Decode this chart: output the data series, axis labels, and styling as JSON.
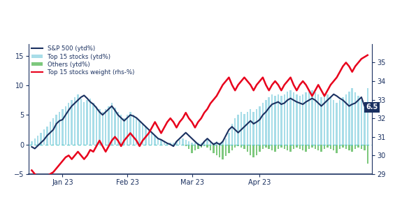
{
  "sp500_color": "#1a3060",
  "top15_bar_color": "#a8dde8",
  "others_bar_color": "#7dc87d",
  "weight_color": "#e8001c",
  "zero_line_color": "#5bc8c8",
  "annotation_bg": "#1a3060",
  "annotation_text": "6.5",
  "ylim_left": [
    -5,
    17
  ],
  "ylim_right": [
    29,
    36
  ],
  "yticks_left": [
    -5,
    0,
    5,
    10,
    15
  ],
  "yticks_right": [
    29,
    30,
    31,
    32,
    33,
    34,
    35
  ],
  "xtick_labels": [
    "Jan 23",
    "Feb 23",
    "Mar 23",
    "Apr 23"
  ],
  "xtick_positions": [
    10,
    31,
    52,
    74
  ],
  "n_days": 110,
  "sp500": [
    -0.4,
    -0.7,
    -0.2,
    0.3,
    0.8,
    1.5,
    2.0,
    2.5,
    3.5,
    4.0,
    4.2,
    5.0,
    5.8,
    6.5,
    7.0,
    7.5,
    8.0,
    8.3,
    7.8,
    7.2,
    6.8,
    6.2,
    5.5,
    5.0,
    5.5,
    6.0,
    6.5,
    5.8,
    5.0,
    4.5,
    4.0,
    4.5,
    5.0,
    4.8,
    4.5,
    4.0,
    3.5,
    3.0,
    2.5,
    2.0,
    1.5,
    1.0,
    0.8,
    0.5,
    0.2,
    0.0,
    -0.3,
    0.5,
    1.0,
    1.5,
    2.0,
    1.5,
    1.0,
    0.5,
    0.0,
    -0.2,
    0.5,
    1.0,
    0.5,
    0.0,
    0.3,
    0.0,
    0.5,
    1.5,
    2.5,
    3.0,
    2.5,
    2.0,
    2.5,
    3.0,
    3.5,
    4.0,
    3.5,
    3.8,
    4.2,
    5.0,
    5.5,
    6.2,
    6.8,
    7.0,
    7.2,
    6.8,
    7.0,
    7.5,
    7.8,
    7.5,
    7.2,
    7.0,
    6.8,
    7.2,
    7.5,
    7.8,
    7.5,
    7.0,
    6.5,
    7.0,
    7.5,
    8.0,
    8.5,
    8.2,
    7.8,
    7.5,
    7.0,
    6.5,
    6.8,
    7.0,
    7.5,
    8.0,
    6.5,
    6.2
  ],
  "top15_bar": [
    0.5,
    1.0,
    1.5,
    2.0,
    2.5,
    3.0,
    3.8,
    4.5,
    5.0,
    5.5,
    6.0,
    6.5,
    7.0,
    7.5,
    8.0,
    8.5,
    7.8,
    7.2,
    7.5,
    7.8,
    7.0,
    6.5,
    6.0,
    5.5,
    6.0,
    6.5,
    7.0,
    6.2,
    5.5,
    5.0,
    4.5,
    5.0,
    5.5,
    5.0,
    4.5,
    4.0,
    3.5,
    3.0,
    2.5,
    2.0,
    1.5,
    1.0,
    0.8,
    0.5,
    0.3,
    0.3,
    0.3,
    0.5,
    0.8,
    1.0,
    0.8,
    0.5,
    0.3,
    0.3,
    0.3,
    0.3,
    0.5,
    0.8,
    0.5,
    0.3,
    0.5,
    0.3,
    0.5,
    1.0,
    2.0,
    3.5,
    4.5,
    5.0,
    5.5,
    5.2,
    5.5,
    6.0,
    5.5,
    6.0,
    6.5,
    7.0,
    7.5,
    8.0,
    8.5,
    8.2,
    8.5,
    8.2,
    8.5,
    9.0,
    9.2,
    8.8,
    8.5,
    8.2,
    8.5,
    8.8,
    9.0,
    9.2,
    8.8,
    8.5,
    8.0,
    8.2,
    8.5,
    8.0,
    7.5,
    7.0,
    7.5,
    8.0,
    8.5,
    9.0,
    9.5,
    8.8,
    8.2,
    7.5,
    6.8,
    9.5
  ],
  "others_bar": [
    0.0,
    0.0,
    0.0,
    0.0,
    0.0,
    0.0,
    0.0,
    0.0,
    0.0,
    0.0,
    0.0,
    0.0,
    0.0,
    0.0,
    0.0,
    0.0,
    0.0,
    0.0,
    0.0,
    0.0,
    0.0,
    0.0,
    0.0,
    0.0,
    0.0,
    0.0,
    0.0,
    0.0,
    0.0,
    0.0,
    0.0,
    0.0,
    0.0,
    0.0,
    0.0,
    0.0,
    0.0,
    0.0,
    0.0,
    0.0,
    0.0,
    0.0,
    0.0,
    0.0,
    0.0,
    0.0,
    0.0,
    0.0,
    0.0,
    0.0,
    -0.3,
    -0.8,
    -1.5,
    -1.0,
    -0.8,
    -0.5,
    -0.3,
    -0.5,
    -1.0,
    -1.5,
    -1.8,
    -2.2,
    -2.5,
    -2.0,
    -1.5,
    -1.0,
    -0.5,
    -0.3,
    -0.5,
    -0.8,
    -1.2,
    -1.8,
    -2.2,
    -1.8,
    -1.2,
    -0.8,
    -0.5,
    -0.8,
    -1.0,
    -1.2,
    -0.8,
    -0.5,
    -0.8,
    -1.0,
    -1.2,
    -0.8,
    -0.5,
    -0.8,
    -1.0,
    -1.2,
    -0.8,
    -0.5,
    -0.8,
    -1.0,
    -1.2,
    -0.8,
    -0.5,
    -0.8,
    -1.0,
    -1.5,
    -0.8,
    -0.5,
    -0.8,
    -1.0,
    -1.2,
    -0.8,
    -0.5,
    -0.8,
    -1.0,
    -3.2
  ],
  "weight": [
    29.2,
    29.0,
    28.9,
    28.8,
    28.8,
    28.9,
    29.0,
    29.1,
    29.3,
    29.5,
    29.7,
    29.9,
    30.0,
    29.8,
    30.0,
    30.2,
    30.0,
    29.8,
    30.0,
    30.3,
    30.2,
    30.5,
    30.8,
    30.5,
    30.2,
    30.5,
    30.8,
    31.0,
    30.8,
    30.5,
    30.8,
    31.0,
    31.2,
    31.0,
    30.8,
    30.5,
    30.8,
    31.0,
    31.2,
    31.5,
    31.8,
    31.5,
    31.2,
    31.5,
    31.8,
    32.0,
    31.8,
    31.5,
    31.8,
    32.0,
    32.3,
    32.0,
    31.8,
    31.5,
    31.8,
    32.0,
    32.3,
    32.5,
    32.8,
    33.0,
    33.2,
    33.5,
    33.8,
    34.0,
    34.2,
    33.8,
    33.5,
    33.8,
    34.0,
    34.2,
    34.0,
    33.8,
    33.5,
    33.8,
    34.0,
    34.2,
    33.8,
    33.5,
    33.8,
    34.0,
    33.8,
    33.5,
    33.8,
    34.0,
    34.2,
    33.8,
    33.5,
    33.8,
    34.0,
    33.8,
    33.5,
    33.2,
    33.5,
    33.8,
    33.5,
    33.2,
    33.5,
    33.8,
    34.0,
    34.2,
    34.5,
    34.8,
    35.0,
    34.8,
    34.5,
    34.8,
    35.0,
    35.2,
    35.3,
    35.4
  ]
}
